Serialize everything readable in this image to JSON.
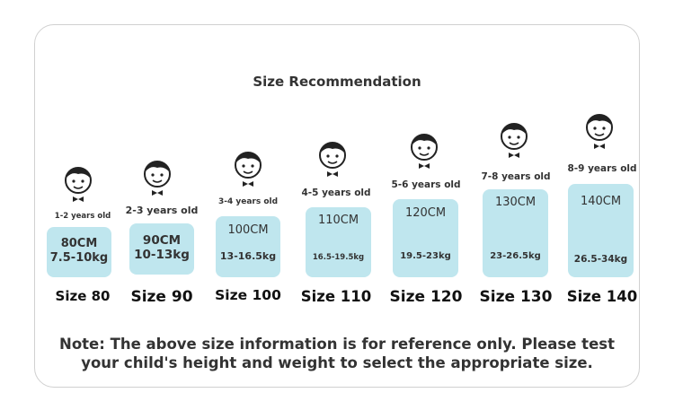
{
  "title": "Size Recommendation",
  "sizes": [
    {
      "age": "1-2 years old",
      "height": "80CM",
      "weight": "7.5-10kg",
      "size": "Size 80"
    },
    {
      "age": "2-3 years old",
      "height": "90CM",
      "weight": "10-13kg",
      "size": "Size 90"
    },
    {
      "age": "3-4 years old",
      "height": "100CM",
      "weight": "13-16.5kg",
      "size": "Size 100"
    },
    {
      "age": "4-5 years old",
      "height": "110CM",
      "weight": "16.5-19.5kg",
      "size": "Size 110"
    },
    {
      "age": "5-6 years old",
      "height": "120CM",
      "weight": "19.5-23kg",
      "size": "Size 120"
    },
    {
      "age": "7-8 years old",
      "height": "130CM",
      "weight": "23-26.5kg",
      "size": "Size 130"
    },
    {
      "age": "8-9 years old",
      "height": "140CM",
      "weight": "26.5-34kg",
      "size": "Size 140"
    }
  ],
  "note": {
    "line1": "Note: The above size information is for reference only. Please test",
    "line2": "your child's height and weight to select the appropriate size."
  },
  "colors": {
    "box": "#bfe6ee",
    "text": "#333333"
  },
  "icons": {
    "avatar": "child-face-icon"
  }
}
